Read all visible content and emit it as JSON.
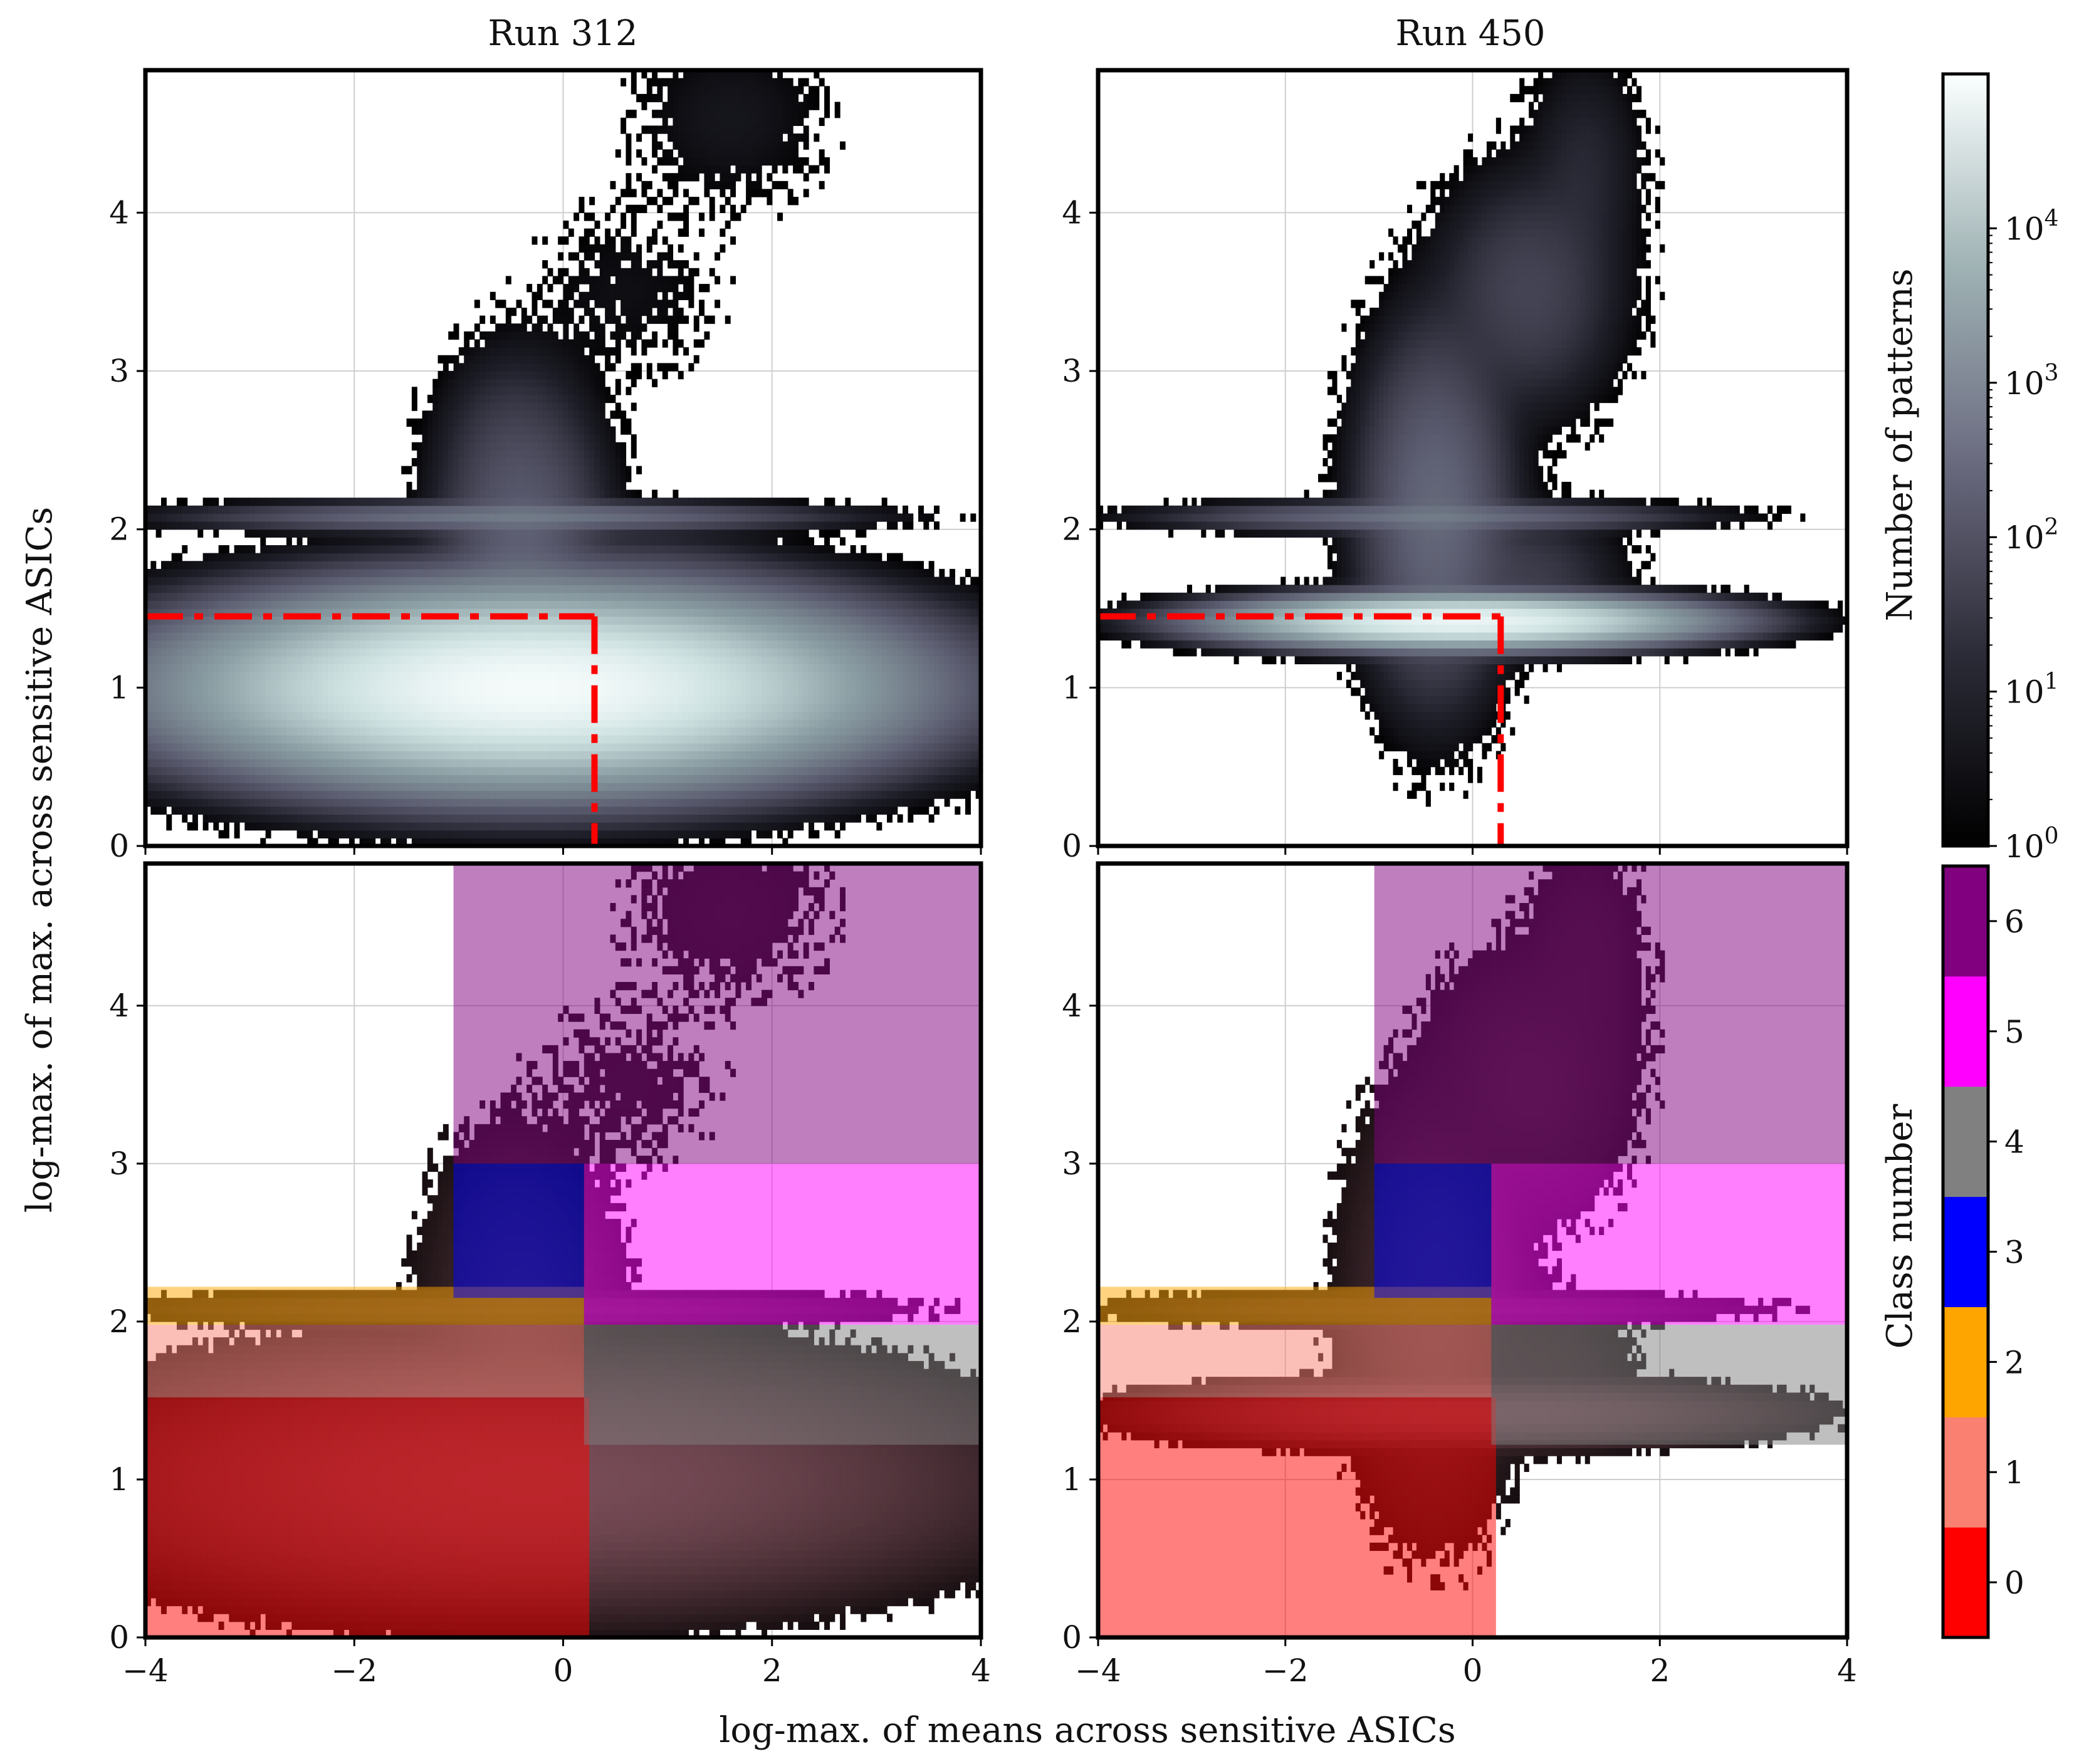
{
  "chart_data": [
    {
      "type": "heatmap",
      "panel": "top-left",
      "title": "Run 312",
      "xlim": [
        -4,
        4
      ],
      "ylim": [
        0,
        4.9
      ],
      "xticks": [
        -4,
        -2,
        0,
        2,
        4
      ],
      "yticks": [
        0,
        1,
        2,
        3,
        4
      ],
      "show_x_ticklabels": false,
      "grid": true,
      "color_scale": "log",
      "threshold_lines": {
        "horizontal_y": 1.45,
        "vertical_x": 0.3,
        "color": "#ff0000",
        "style": "dash-dot"
      },
      "density_blobs": [
        {
          "x": -0.3,
          "y": 1.0,
          "sx": 1.2,
          "sy": 0.22,
          "peak_count": 80000
        },
        {
          "x": -0.4,
          "y": 1.9,
          "sx": 0.35,
          "sy": 0.45,
          "peak_count": 200
        },
        {
          "x": -0.5,
          "y": 2.08,
          "sx": 1.2,
          "sy": 0.04,
          "peak_count": 500
        },
        {
          "x": -0.6,
          "y": 2.6,
          "sx": 0.3,
          "sy": 0.25,
          "peak_count": 10
        },
        {
          "x": 0.8,
          "y": 1.7,
          "sx": 0.6,
          "sy": 0.15,
          "peak_count": 30
        },
        {
          "x": 0.6,
          "y": 3.5,
          "sx": 0.5,
          "sy": 0.3,
          "peak_count": 3
        },
        {
          "x": 1.6,
          "y": 4.6,
          "sx": 0.5,
          "sy": 0.3,
          "peak_count": 5
        }
      ]
    },
    {
      "type": "heatmap",
      "panel": "top-right",
      "title": "Run 450",
      "xlim": [
        -4,
        4
      ],
      "ylim": [
        0,
        4.9
      ],
      "xticks": [
        -4,
        -2,
        0,
        2,
        4
      ],
      "yticks": [
        0,
        1,
        2,
        3,
        4
      ],
      "show_x_ticklabels": false,
      "grid": true,
      "color_scale": "log",
      "threshold_lines": {
        "horizontal_y": 1.45,
        "vertical_x": 0.3,
        "color": "#ff0000",
        "style": "dash-dot"
      },
      "density_blobs": [
        {
          "x": -0.1,
          "y": 1.42,
          "sx": 0.9,
          "sy": 0.06,
          "peak_count": 60000
        },
        {
          "x": -0.4,
          "y": 2.1,
          "sx": 0.35,
          "sy": 0.5,
          "peak_count": 300
        },
        {
          "x": -0.5,
          "y": 2.08,
          "sx": 1.1,
          "sy": 0.04,
          "peak_count": 400
        },
        {
          "x": 0.6,
          "y": 1.7,
          "sx": 0.45,
          "sy": 0.2,
          "peak_count": 40
        },
        {
          "x": 0.6,
          "y": 3.5,
          "sx": 0.45,
          "sy": 0.35,
          "peak_count": 60
        },
        {
          "x": 1.2,
          "y": 4.3,
          "sx": 0.3,
          "sy": 0.35,
          "peak_count": 15
        }
      ]
    },
    {
      "type": "heatmap",
      "panel": "bottom-left",
      "xlim": [
        -4,
        4
      ],
      "ylim": [
        0,
        4.9
      ],
      "xticks": [
        -4,
        -2,
        0,
        2,
        4
      ],
      "yticks": [
        0,
        1,
        2,
        3,
        4
      ],
      "show_x_ticklabels": true,
      "grid": true,
      "class_regions": [
        {
          "class": 0,
          "x": [
            -4,
            0.25
          ],
          "y": [
            0,
            1.52
          ]
        },
        {
          "class": 1,
          "x": [
            -4,
            0.2
          ],
          "y": [
            1.52,
            1.98
          ]
        },
        {
          "class": 2,
          "x": [
            -4,
            0.2
          ],
          "y": [
            1.98,
            2.22
          ]
        },
        {
          "class": 3,
          "x": [
            -1.05,
            0.2
          ],
          "y": [
            2.15,
            3.0
          ]
        },
        {
          "class": 4,
          "x": [
            0.2,
            4
          ],
          "y": [
            1.22,
            1.98
          ]
        },
        {
          "class": 5,
          "x": [
            0.2,
            4
          ],
          "y": [
            1.98,
            3.0
          ]
        },
        {
          "class": 6,
          "x": [
            -1.05,
            4
          ],
          "y": [
            3.0,
            4.9
          ]
        }
      ]
    },
    {
      "type": "heatmap",
      "panel": "bottom-right",
      "xlim": [
        -4,
        4
      ],
      "ylim": [
        0,
        4.9
      ],
      "xticks": [
        -4,
        -2,
        0,
        2,
        4
      ],
      "yticks": [
        0,
        1,
        2,
        3,
        4
      ],
      "show_x_ticklabels": true,
      "grid": true,
      "class_regions": [
        {
          "class": 0,
          "x": [
            -4,
            0.25
          ],
          "y": [
            0,
            1.52
          ]
        },
        {
          "class": 1,
          "x": [
            -4,
            0.2
          ],
          "y": [
            1.52,
            1.98
          ]
        },
        {
          "class": 2,
          "x": [
            -4,
            0.2
          ],
          "y": [
            1.98,
            2.22
          ]
        },
        {
          "class": 3,
          "x": [
            -1.05,
            0.2
          ],
          "y": [
            2.15,
            3.0
          ]
        },
        {
          "class": 4,
          "x": [
            0.2,
            4
          ],
          "y": [
            1.22,
            1.98
          ]
        },
        {
          "class": 5,
          "x": [
            0.2,
            4
          ],
          "y": [
            1.98,
            3.0
          ]
        },
        {
          "class": 6,
          "x": [
            -1.05,
            4
          ],
          "y": [
            3.0,
            4.9
          ]
        }
      ]
    }
  ],
  "shared_axes": {
    "xlabel": "log-max. of means across sensitive ASICs",
    "ylabel": "log-max. of max. across sensitive ASICs"
  },
  "colorbar_counts": {
    "label": "Number of patterns",
    "scale": "log",
    "range": [
      1,
      100000
    ],
    "tick_labels": [
      "10",
      "10",
      "10",
      "10",
      "10"
    ],
    "tick_exponents": [
      "0",
      "1",
      "2",
      "3",
      "4"
    ],
    "colormap": [
      "#000000",
      "#3a3a48",
      "#7a7a8c",
      "#aab8ba",
      "#f4fbfb"
    ]
  },
  "colorbar_classes": {
    "label": "Class number",
    "tick_labels": [
      "0",
      "1",
      "2",
      "3",
      "4",
      "5",
      "6"
    ],
    "class_colors": [
      "#ff0000",
      "#fa8072",
      "#ffa500",
      "#0000ff",
      "#808080",
      "#ff00ff",
      "#800080"
    ]
  }
}
